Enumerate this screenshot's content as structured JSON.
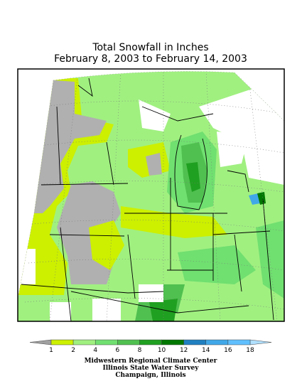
{
  "header": {
    "title": "Total Snowfall in Inches",
    "subtitle": "February 8, 2003 to February 14, 2003"
  },
  "legend": {
    "labels": [
      1,
      2,
      4,
      6,
      8,
      10,
      12,
      14,
      16,
      18
    ],
    "colors": [
      "#a0a0a0",
      "#ccf000",
      "#a0f080",
      "#70e070",
      "#50c050",
      "#20a020",
      "#007800",
      "#2080c0",
      "#40a8e8",
      "#60c0ff",
      "#b0e0ff"
    ]
  },
  "credits": [
    "Midwestern Regional Climate Center",
    "Illinois State Water Survey",
    "Champaign, Illinois"
  ]
}
